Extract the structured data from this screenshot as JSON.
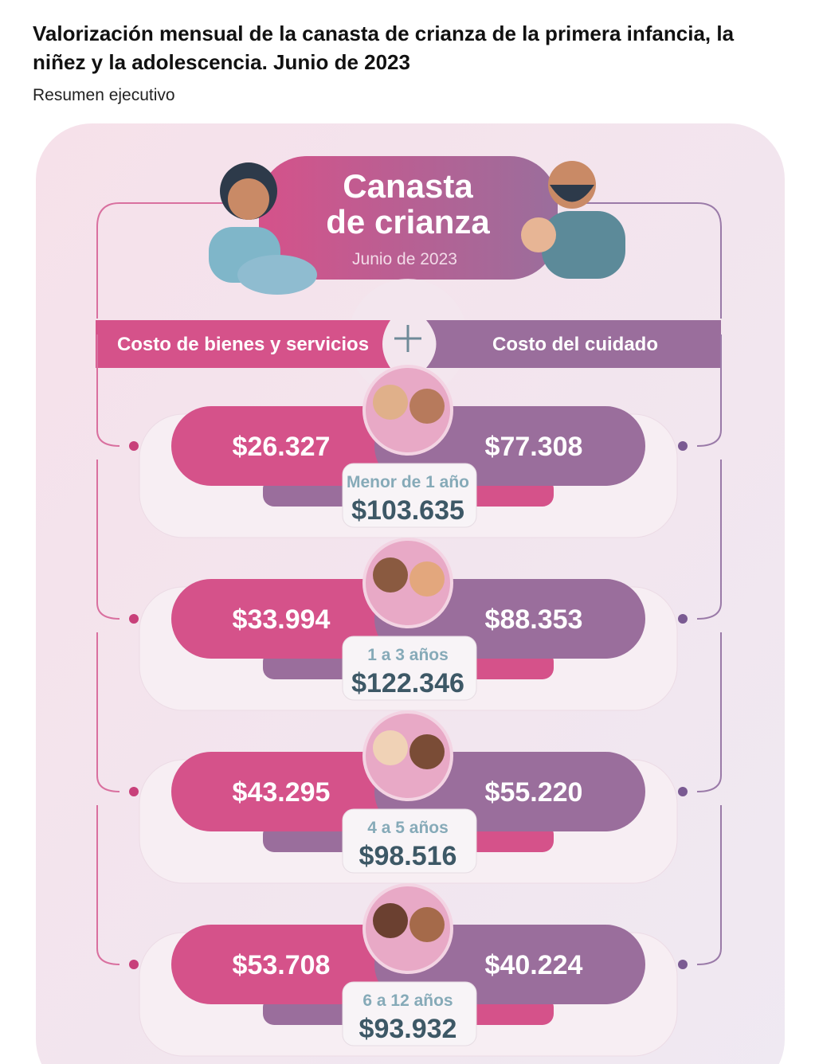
{
  "header": {
    "title": "Valorización mensual de la canasta de crianza de la primera infancia, la niñez y la adolescencia. Junio de 2023",
    "subtitle": "Resumen ejecutivo"
  },
  "card": {
    "title_lines": [
      "Canasta",
      "de crianza"
    ],
    "date": "Junio de 2023",
    "columns": {
      "left": "Costo de bienes y servicios",
      "right": "Costo del cuidado"
    },
    "rows": [
      {
        "age": "Menor de 1 año",
        "goods": "$26.327",
        "care": "$77.308",
        "total": "$103.635"
      },
      {
        "age": "1 a 3 años",
        "goods": "$33.994",
        "care": "$88.353",
        "total": "$122.346"
      },
      {
        "age": "4 a 5 años",
        "goods": "$43.295",
        "care": "$55.220",
        "total": "$98.516"
      },
      {
        "age": "6 a 12 años",
        "goods": "$53.708",
        "care": "$40.224",
        "total": "$93.932"
      }
    ]
  }
}
